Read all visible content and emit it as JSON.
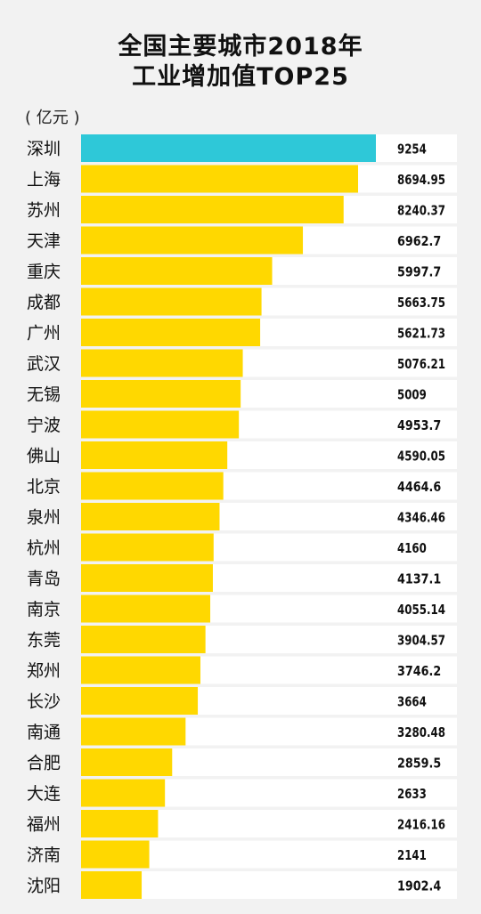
{
  "title_line1": "全国主要城市2018年",
  "title_line2": "工业增加值TOP25",
  "unit_label": "( 亿元 )",
  "colors": {
    "highlight": "#2ec8d8",
    "bar": "#ffd800",
    "track": "#ffffff",
    "background": "#f2f2f2",
    "text": "#111111"
  },
  "chart_data": {
    "type": "bar",
    "orientation": "horizontal",
    "title": "全国主要城市2018年工业增加值TOP25",
    "unit": "亿元",
    "categories": [
      "深圳",
      "上海",
      "苏州",
      "天津",
      "重庆",
      "成都",
      "广州",
      "武汉",
      "无锡",
      "宁波",
      "佛山",
      "北京",
      "泉州",
      "杭州",
      "青岛",
      "南京",
      "东莞",
      "郑州",
      "长沙",
      "南通",
      "合肥",
      "大连",
      "福州",
      "济南",
      "沈阳"
    ],
    "values": [
      9254,
      8694.95,
      8240.37,
      6962.7,
      5997.7,
      5663.75,
      5621.73,
      5076.21,
      5009,
      4953.7,
      4590.05,
      4464.6,
      4346.46,
      4160,
      4137.1,
      4055.14,
      3904.57,
      3746.2,
      3664,
      3280.48,
      2859.5,
      2633,
      2416.16,
      2141,
      1902.4
    ],
    "value_labels": [
      "9254",
      "8694.95",
      "8240.37",
      "6962.7",
      "5997.7",
      "5663.75",
      "5621.73",
      "5076.21",
      "5009",
      "4953.7",
      "4590.05",
      "4464.6",
      "4346.46",
      "4160",
      "4137.1",
      "4055.14",
      "3904.57",
      "3746.2",
      "3664",
      "3280.48",
      "2859.5",
      "2633",
      "2416.16",
      "2141",
      "1902.4"
    ],
    "highlight_index": 0,
    "xlim": [
      0,
      10000
    ],
    "grid": false,
    "legend": "none"
  }
}
